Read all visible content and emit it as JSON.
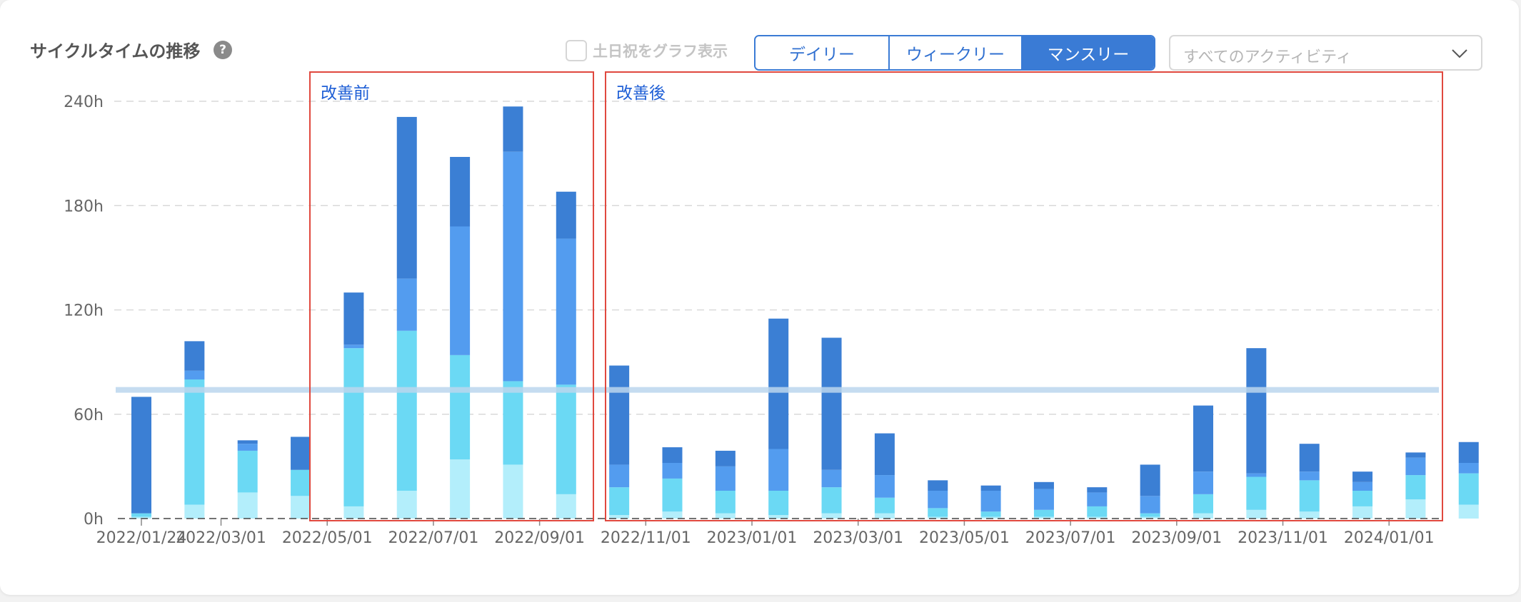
{
  "header": {
    "title": "サイクルタイムの推移",
    "help_icon": "?",
    "weekend_checkbox": {
      "label": "土日祝をグラフ表示",
      "checked": false
    },
    "period_tabs": [
      {
        "label": "デイリー",
        "active": false
      },
      {
        "label": "ウィークリー",
        "active": false
      },
      {
        "label": "マンスリー",
        "active": true
      }
    ],
    "activity_select": {
      "value": "すべてのアクティビティ",
      "icon": "chevron-down-icon"
    }
  },
  "colors": {
    "dark_blue": "#3b7fd4",
    "mid_blue": "#539cef",
    "cyan": "#6bd9f4",
    "light_cyan": "#b3eefb",
    "accent": "#3a7bd5",
    "annotation_red": "#e0483e",
    "annotation_text": "#1f5fd6",
    "reference_line": "#bcd7ee"
  },
  "chart_data": {
    "type": "bar",
    "stacked": true,
    "ylim": [
      0,
      240
    ],
    "yticks": [
      "0h",
      "60h",
      "120h",
      "180h",
      "240h"
    ],
    "ytick_values": [
      0,
      60,
      120,
      180,
      240
    ],
    "xtick_labels": [
      "2022/01/24",
      "2022/03/01",
      "2022/05/01",
      "2022/07/01",
      "2022/09/01",
      "2022/11/01",
      "2023/01/01",
      "2023/03/01",
      "2023/05/01",
      "2023/07/01",
      "2023/09/01",
      "2023/11/01",
      "2024/01/01"
    ],
    "reference_line_value": 74,
    "grid": true,
    "series": [
      {
        "color": "#b3eefb",
        "values": [
          1,
          8,
          15,
          13,
          7,
          16,
          34,
          31,
          14,
          2,
          4,
          3,
          2,
          3,
          3,
          1,
          1,
          1,
          1,
          1,
          3,
          5,
          4,
          7,
          11,
          8
        ]
      },
      {
        "color": "#6bd9f4",
        "values": [
          2,
          72,
          24,
          15,
          91,
          92,
          60,
          48,
          63,
          16,
          19,
          13,
          14,
          15,
          9,
          5,
          3,
          4,
          6,
          2,
          11,
          19,
          18,
          9,
          14,
          18
        ]
      },
      {
        "color": "#539cef",
        "values": [
          0,
          5,
          4,
          0,
          2,
          30,
          74,
          132,
          84,
          13,
          9,
          14,
          24,
          10,
          13,
          10,
          12,
          12,
          8,
          10,
          13,
          2,
          5,
          5,
          10,
          6
        ]
      },
      {
        "color": "#3b7fd4",
        "values": [
          67,
          17,
          2,
          19,
          30,
          93,
          40,
          26,
          27,
          57,
          9,
          9,
          75,
          76,
          24,
          6,
          3,
          4,
          3,
          18,
          38,
          72,
          16,
          6,
          3,
          12
        ]
      }
    ]
  },
  "annotations": [
    {
      "label": "改善前"
    },
    {
      "label": "改善後"
    }
  ]
}
